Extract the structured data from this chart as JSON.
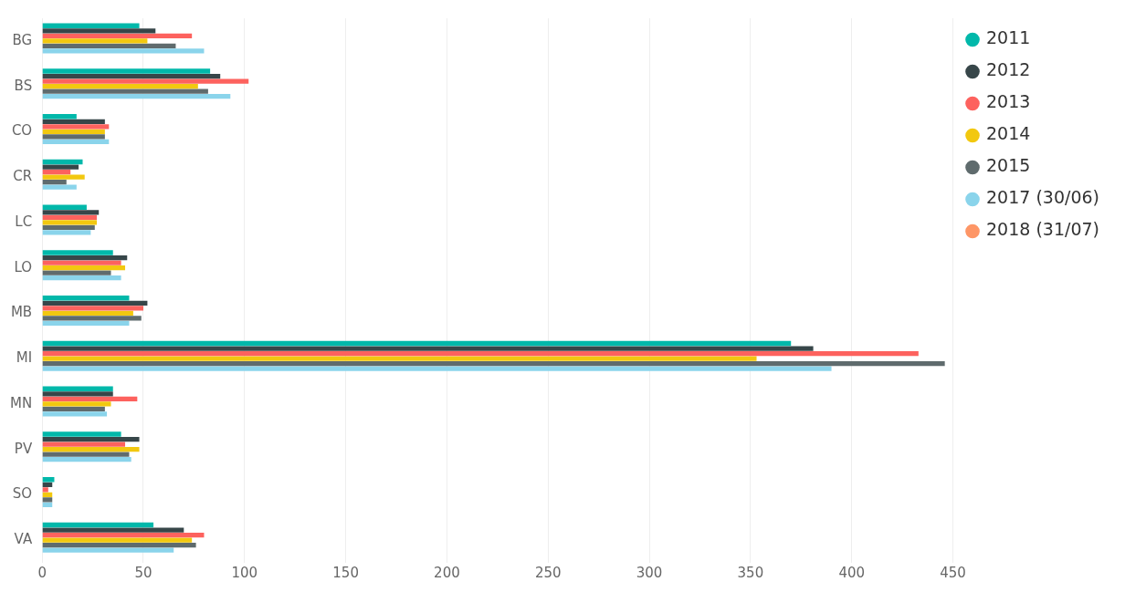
{
  "chart_data": {
    "type": "bar",
    "orientation": "horizontal",
    "categories": [
      "BG",
      "BS",
      "CO",
      "CR",
      "LC",
      "LO",
      "MB",
      "MI",
      "MN",
      "PV",
      "SO",
      "VA"
    ],
    "series": [
      {
        "name": "2011",
        "color": "#01b8aa",
        "values": [
          48,
          83,
          17,
          20,
          22,
          35,
          43,
          370,
          35,
          39,
          6,
          55
        ]
      },
      {
        "name": "2012",
        "color": "#374649",
        "values": [
          56,
          88,
          31,
          18,
          28,
          42,
          52,
          381,
          35,
          48,
          5,
          70
        ]
      },
      {
        "name": "2013",
        "color": "#fd625e",
        "values": [
          74,
          102,
          33,
          14,
          27,
          39,
          50,
          433,
          47,
          41,
          3,
          80
        ]
      },
      {
        "name": "2014",
        "color": "#f2c80f",
        "values": [
          52,
          77,
          31,
          21,
          27,
          41,
          45,
          353,
          34,
          48,
          5,
          74
        ]
      },
      {
        "name": "2015",
        "color": "#5f6b6d",
        "values": [
          66,
          82,
          31,
          12,
          26,
          34,
          49,
          446,
          31,
          43,
          5,
          76
        ]
      },
      {
        "name": "2017 (30/06)",
        "color": "#8ad4eb",
        "values": [
          80,
          93,
          33,
          17,
          24,
          39,
          43,
          390,
          32,
          44,
          5,
          65
        ]
      },
      {
        "name": "2018 (31/07)",
        "color": "#fe9666",
        "values": [
          null,
          null,
          null,
          null,
          null,
          null,
          null,
          null,
          null,
          null,
          null,
          null
        ]
      }
    ],
    "xlim": [
      0,
      450
    ],
    "xticks": [
      0,
      50,
      100,
      150,
      200,
      250,
      300,
      350,
      400,
      450
    ],
    "grid": "x",
    "legend": "top right"
  }
}
